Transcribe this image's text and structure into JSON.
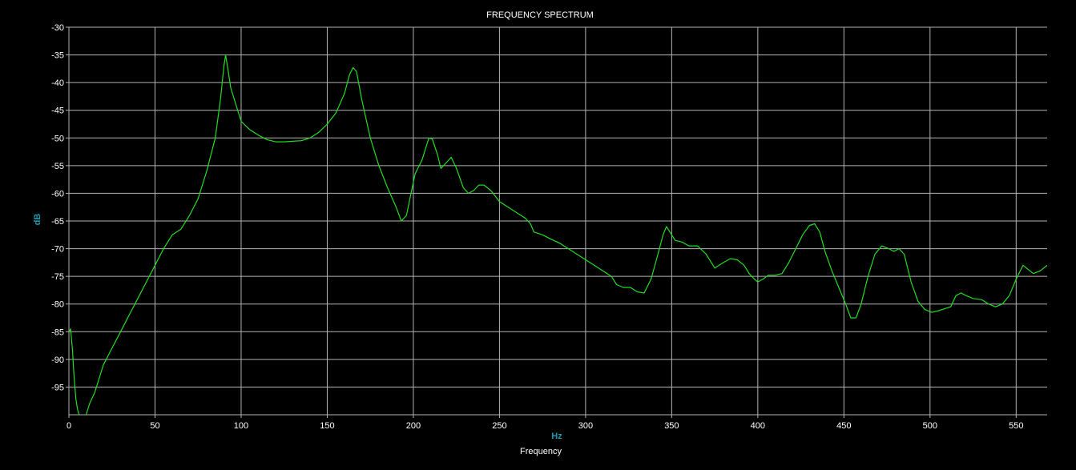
{
  "chart_data": {
    "type": "line",
    "title": "FREQUENCY SPECTRUM",
    "xlabel": "Frequency",
    "xunit": "Hz",
    "yunit": "dB",
    "xlim": [
      0,
      568
    ],
    "ylim": [
      -100,
      -30
    ],
    "xticks": [
      0,
      50,
      100,
      150,
      200,
      250,
      300,
      350,
      400,
      450,
      500,
      550
    ],
    "yticks": [
      -30,
      -35,
      -40,
      -45,
      -50,
      -55,
      -60,
      -65,
      -70,
      -75,
      -80,
      -85,
      -90,
      -95
    ],
    "grid": true,
    "colors": {
      "background": "#000000",
      "grid": "#b4b4b4",
      "text": "#ffffff",
      "unit": "#1f9bb0",
      "series": "#22dd22"
    },
    "series": [
      {
        "values": [
          [
            0,
            -85
          ],
          [
            1,
            -84.5
          ],
          [
            2,
            -88
          ],
          [
            3,
            -93
          ],
          [
            4,
            -97
          ],
          [
            5,
            -99
          ],
          [
            6,
            -100
          ],
          [
            9,
            -101
          ],
          [
            10,
            -100
          ],
          [
            12,
            -98
          ],
          [
            15,
            -96
          ],
          [
            18,
            -93
          ],
          [
            20,
            -91
          ],
          [
            25,
            -88
          ],
          [
            30,
            -85
          ],
          [
            35,
            -82
          ],
          [
            40,
            -79
          ],
          [
            45,
            -76
          ],
          [
            50,
            -73
          ],
          [
            55,
            -70
          ],
          [
            60,
            -67.5
          ],
          [
            65,
            -66.5
          ],
          [
            70,
            -64
          ],
          [
            75,
            -61
          ],
          [
            80,
            -56
          ],
          [
            85,
            -50
          ],
          [
            88,
            -43
          ],
          [
            90,
            -37
          ],
          [
            91,
            -35
          ],
          [
            92,
            -37
          ],
          [
            94,
            -41
          ],
          [
            97,
            -44
          ],
          [
            100,
            -47
          ],
          [
            105,
            -48.5
          ],
          [
            110,
            -49.5
          ],
          [
            115,
            -50.3
          ],
          [
            120,
            -50.7
          ],
          [
            125,
            -50.7
          ],
          [
            130,
            -50.6
          ],
          [
            135,
            -50.5
          ],
          [
            140,
            -50
          ],
          [
            145,
            -49
          ],
          [
            150,
            -47.5
          ],
          [
            155,
            -45.5
          ],
          [
            160,
            -42
          ],
          [
            163,
            -38.5
          ],
          [
            165,
            -37.3
          ],
          [
            167,
            -38
          ],
          [
            170,
            -43
          ],
          [
            175,
            -50
          ],
          [
            180,
            -55
          ],
          [
            185,
            -59
          ],
          [
            190,
            -62.5
          ],
          [
            193,
            -65
          ],
          [
            196,
            -64
          ],
          [
            198,
            -61
          ],
          [
            201,
            -56.5
          ],
          [
            205,
            -54
          ],
          [
            207,
            -52
          ],
          [
            209,
            -50
          ],
          [
            211,
            -50.2
          ],
          [
            214,
            -53
          ],
          [
            216,
            -55.5
          ],
          [
            219,
            -54.5
          ],
          [
            222,
            -53.5
          ],
          [
            225,
            -55.5
          ],
          [
            229,
            -59
          ],
          [
            232,
            -60
          ],
          [
            235,
            -59.5
          ],
          [
            238,
            -58.5
          ],
          [
            241,
            -58.5
          ],
          [
            245,
            -59.5
          ],
          [
            250,
            -61.5
          ],
          [
            255,
            -62.5
          ],
          [
            260,
            -63.5
          ],
          [
            265,
            -64.5
          ],
          [
            268,
            -65.5
          ],
          [
            270,
            -67
          ],
          [
            275,
            -67.5
          ],
          [
            280,
            -68.3
          ],
          [
            285,
            -69
          ],
          [
            290,
            -70
          ],
          [
            295,
            -71
          ],
          [
            300,
            -72
          ],
          [
            305,
            -73
          ],
          [
            310,
            -74
          ],
          [
            315,
            -75
          ],
          [
            318,
            -76.5
          ],
          [
            322,
            -77
          ],
          [
            326,
            -77
          ],
          [
            330,
            -77.8
          ],
          [
            334,
            -78
          ],
          [
            338,
            -75.5
          ],
          [
            342,
            -71
          ],
          [
            345,
            -67.5
          ],
          [
            347,
            -66
          ],
          [
            349,
            -67
          ],
          [
            352,
            -68.5
          ],
          [
            356,
            -68.8
          ],
          [
            360,
            -69.5
          ],
          [
            365,
            -69.5
          ],
          [
            370,
            -71
          ],
          [
            375,
            -73.5
          ],
          [
            380,
            -72.5
          ],
          [
            384,
            -71.8
          ],
          [
            388,
            -72
          ],
          [
            392,
            -73
          ],
          [
            395,
            -74.5
          ],
          [
            398,
            -75.5
          ],
          [
            400,
            -76
          ],
          [
            403,
            -75.5
          ],
          [
            406,
            -74.8
          ],
          [
            410,
            -74.8
          ],
          [
            414,
            -74.5
          ],
          [
            418,
            -72.5
          ],
          [
            422,
            -70
          ],
          [
            426,
            -67.5
          ],
          [
            430,
            -65.8
          ],
          [
            433,
            -65.5
          ],
          [
            436,
            -67
          ],
          [
            439,
            -70.5
          ],
          [
            443,
            -74
          ],
          [
            447,
            -77
          ],
          [
            451,
            -80
          ],
          [
            454,
            -82.5
          ],
          [
            457,
            -82.5
          ],
          [
            460,
            -80
          ],
          [
            464,
            -75
          ],
          [
            468,
            -71
          ],
          [
            472,
            -69.5
          ],
          [
            476,
            -70
          ],
          [
            479,
            -70.5
          ],
          [
            482,
            -70
          ],
          [
            485,
            -71
          ],
          [
            489,
            -76
          ],
          [
            493,
            -79.5
          ],
          [
            497,
            -81
          ],
          [
            501,
            -81.5
          ],
          [
            505,
            -81.2
          ],
          [
            509,
            -80.8
          ],
          [
            512,
            -80.5
          ],
          [
            515,
            -78.5
          ],
          [
            518,
            -78
          ],
          [
            521,
            -78.5
          ],
          [
            525,
            -79
          ],
          [
            530,
            -79.2
          ],
          [
            534,
            -80
          ],
          [
            538,
            -80.5
          ],
          [
            542,
            -80
          ],
          [
            546,
            -78.5
          ],
          [
            550,
            -75.5
          ],
          [
            554,
            -73
          ],
          [
            556,
            -73.5
          ],
          [
            560,
            -74.5
          ],
          [
            564,
            -74
          ],
          [
            568,
            -73
          ]
        ]
      }
    ]
  }
}
